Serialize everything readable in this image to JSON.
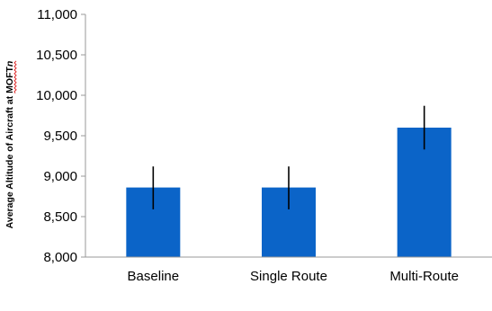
{
  "chart_data": {
    "type": "bar",
    "title": "",
    "xlabel": "",
    "ylabel": "Average Altitude of Aircraft at MOFT",
    "ylabel_suffix": "n",
    "ylim": [
      8000,
      11000
    ],
    "yticks": [
      8000,
      8500,
      9000,
      9500,
      10000,
      10500,
      11000
    ],
    "ytick_labels": [
      "8,000",
      "8,500",
      "9,000",
      "9,500",
      "10,000",
      "10,500",
      "11,000"
    ],
    "categories": [
      "Baseline",
      "Single Route",
      "Multi-Route"
    ],
    "series": [
      {
        "values": [
          8860,
          8860,
          9600
        ],
        "error_low": [
          8590,
          8590,
          9330
        ],
        "error_high": [
          9120,
          9120,
          9870
        ]
      }
    ],
    "grid": false,
    "legend": "none",
    "colors": {
      "bar": "#0b64c8",
      "axis": "#999999",
      "error_bar": "#000000"
    }
  }
}
